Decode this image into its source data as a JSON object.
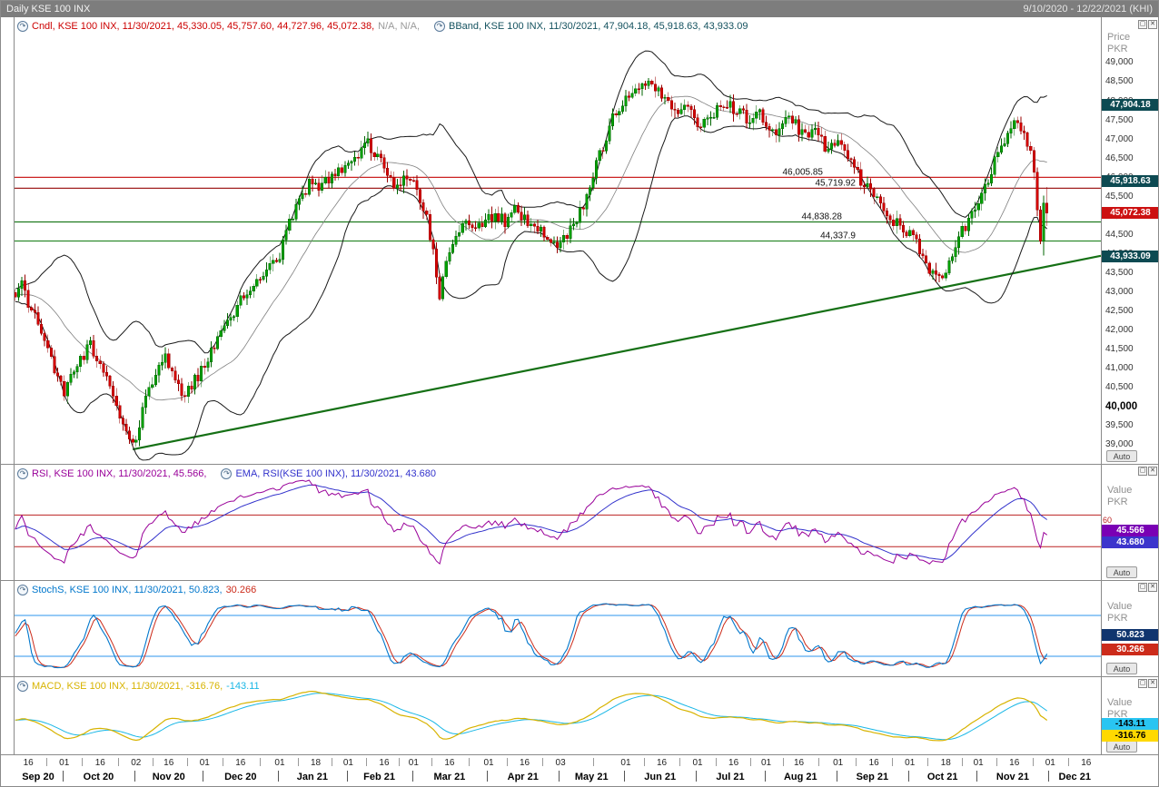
{
  "title_bar": {
    "title": "Daily KSE 100 INX",
    "range": "9/10/2020 - 12/22/2021 (KHI)"
  },
  "icons": {
    "indicator": "↷",
    "maximize": "▢",
    "close": "✕"
  },
  "colors": {
    "cndl": "#cc0000",
    "na": "#999999",
    "bband": "#14525f",
    "rsi": "#990099",
    "rsi_ema": "#3333cc",
    "stoch_k": "#0077cc",
    "stoch_d": "#cc2b1a",
    "macd": "#d7b300",
    "macd_signal": "#19b7e6",
    "up_candle": "#00a000",
    "up_stroke": "#006600",
    "down_candle": "#d40000",
    "down_stroke": "#990000",
    "band_line": "#1a1a1a",
    "band_mid": "#808080",
    "trendline": "#157015",
    "ref_blue": "#58aaf0",
    "ref_red": "#bb2222"
  },
  "panels": {
    "main": {
      "legend_cndl": "Cndl, KSE 100 INX, 11/30/2021, 45,330.05, 45,757.60, 44,727.96, 45,072.38,",
      "legend_cndl_na": "N/A, N/A,",
      "legend_bband": "BBand, KSE 100 INX, 11/30/2021, 47,904.18, 45,918.63, 43,933.09",
      "axis": {
        "label": "Price",
        "currency": "PKR",
        "auto": "Auto",
        "bold_tick": "40,000",
        "ticks": [
          "49,000",
          "48,500",
          "48,000",
          "47,500",
          "47,000",
          "46,500",
          "46,000",
          "45,500",
          "45,000",
          "44,500",
          "44,000",
          "43,500",
          "43,000",
          "42,500",
          "42,000",
          "41,500",
          "41,000",
          "40,500",
          "40,000",
          "39,500",
          "39,000"
        ]
      },
      "badges": [
        {
          "text": "47,904.18",
          "value": 47904.18,
          "bg": "#0d4a52",
          "fg": "#ffffff"
        },
        {
          "text": "45,918.63",
          "value": 45918.63,
          "bg": "#0d4a52",
          "fg": "#ffffff"
        },
        {
          "text": "45,072.38",
          "value": 45072.38,
          "bg": "#cc1111",
          "fg": "#ffffff"
        },
        {
          "text": "43,933.09",
          "value": 43933.09,
          "bg": "#0d4a52",
          "fg": "#ffffff"
        }
      ],
      "levels": [
        {
          "label": "46,005.85",
          "value": 46005.85,
          "color": "#cc2222"
        },
        {
          "label": "45,719.92",
          "value": 45719.92,
          "color": "#a02020"
        },
        {
          "label": "44,838.28",
          "value": 44838.28,
          "color": "#1f7a1f"
        },
        {
          "label": "44,337.9",
          "value": 44337.9,
          "color": "#2e8b2e"
        }
      ]
    },
    "rsi": {
      "legend_rsi": "RSI, KSE 100 INX, 11/30/2021, 45.566,",
      "legend_ema": "EMA, RSI(KSE 100 INX), 11/30/2021, 43.680",
      "level_label": "60",
      "ref_lines": [
        60,
        30
      ],
      "axis": {
        "label": "Value",
        "currency": "PKR",
        "auto": "Auto"
      },
      "badges": [
        {
          "text": "45.566",
          "value": 45.566,
          "bg": "#7a00b4",
          "fg": "#ffffff"
        },
        {
          "text": "43.680",
          "value": 43.68,
          "bg": "#3c35cc",
          "fg": "#ffffff"
        }
      ]
    },
    "stoch": {
      "legend_k": "StochS, KSE 100 INX, 11/30/2021, 50.823,",
      "legend_d": "30.266",
      "ref_lines": [
        80,
        20
      ],
      "axis": {
        "label": "Value",
        "currency": "PKR",
        "auto": "Auto"
      },
      "badges": [
        {
          "text": "50.823",
          "value": 50.823,
          "bg": "#10356e",
          "fg": "#ffffff"
        },
        {
          "text": "30.266",
          "value": 30.266,
          "bg": "#cc2b1a",
          "fg": "#ffffff"
        }
      ]
    },
    "macd": {
      "legend_macd": "MACD, KSE 100 INX, 11/30/2021, -316.76,",
      "legend_signal": "-143.11",
      "axis": {
        "label": "Value",
        "currency": "PKR",
        "auto": "Auto"
      },
      "badges": [
        {
          "text": "-143.11",
          "value": -143.11,
          "bg": "#29c5f2",
          "fg": "#000000"
        },
        {
          "text": "-316.76",
          "value": -316.76,
          "bg": "#ffd900",
          "fg": "#000000"
        }
      ]
    }
  },
  "x_axis": {
    "day_ticks": [
      [
        "16",
        4
      ],
      [
        "01",
        15
      ],
      [
        "16",
        26
      ],
      [
        "02",
        37
      ],
      [
        "16",
        47
      ],
      [
        "01",
        58
      ],
      [
        "16",
        69
      ],
      [
        "01",
        81
      ],
      [
        "18",
        92
      ],
      [
        "01",
        102
      ],
      [
        "16",
        113
      ],
      [
        "01",
        122
      ],
      [
        "16",
        133
      ],
      [
        "01",
        145
      ],
      [
        "16",
        156
      ],
      [
        "03",
        167
      ],
      [
        "01",
        187
      ],
      [
        "16",
        198
      ],
      [
        "01",
        209
      ],
      [
        "16",
        220
      ],
      [
        "01",
        230
      ],
      [
        "16",
        240
      ],
      [
        "01",
        252
      ],
      [
        "16",
        263
      ],
      [
        "01",
        274
      ],
      [
        "18",
        285
      ],
      [
        "01",
        295
      ],
      [
        "16",
        306
      ],
      [
        "01",
        317
      ],
      [
        "16",
        328
      ]
    ],
    "months": [
      [
        "Sep 20",
        0,
        15
      ],
      [
        "Oct 20",
        15,
        37
      ],
      [
        "Nov 20",
        37,
        58
      ],
      [
        "Dec 20",
        58,
        81
      ],
      [
        "Jan 21",
        81,
        102
      ],
      [
        "Feb 21",
        102,
        122
      ],
      [
        "Mar 21",
        122,
        145
      ],
      [
        "Apr 21",
        145,
        167
      ],
      [
        "May 21",
        167,
        187
      ],
      [
        "Jun 21",
        187,
        209
      ],
      [
        "Jul 21",
        209,
        230
      ],
      [
        "Aug 21",
        230,
        252
      ],
      [
        "Sep 21",
        252,
        274
      ],
      [
        "Oct 21",
        274,
        295
      ],
      [
        "Nov 21",
        295,
        317
      ],
      [
        "Dec 21",
        317,
        333
      ]
    ]
  },
  "chart_data": {
    "type": "candlestick",
    "title": "Daily KSE 100 INX",
    "instrument": "KSE 100 INX",
    "interval": "Daily",
    "date_range": "9/10/2020 - 12/22/2021",
    "exchange": "KHI",
    "last_candle": {
      "date": "11/30/2021",
      "open": 45330.05,
      "high": 45757.6,
      "low": 44727.96,
      "close": 45072.38
    },
    "bollinger_last": {
      "upper": 47904.18,
      "middle": 45918.63,
      "lower": 43933.09
    },
    "horizontal_levels": [
      46005.85,
      45719.92,
      44838.28,
      44337.9
    ],
    "trendline": {
      "from_day": 36,
      "from_price": 38880,
      "to_day": 333,
      "to_price": 43950
    },
    "rsi_last": 45.566,
    "rsi_ema_last": 43.68,
    "stoch_k_last": 50.823,
    "stoch_d_last": 30.266,
    "macd_last": -316.76,
    "macd_signal_last": -143.11,
    "ylim": [
      38500,
      50200
    ],
    "yticks": {
      "max": 49000,
      "min": 39000,
      "step": 500
    },
    "total_days": 333,
    "candle_count": 317,
    "approx_daily_close_path": [
      [
        0,
        42900
      ],
      [
        2,
        43300
      ],
      [
        4,
        42750
      ],
      [
        7,
        42100
      ],
      [
        10,
        41400
      ],
      [
        13,
        40700
      ],
      [
        15,
        40350
      ],
      [
        17,
        40750
      ],
      [
        20,
        41250
      ],
      [
        23,
        41600
      ],
      [
        26,
        41150
      ],
      [
        29,
        40450
      ],
      [
        32,
        39750
      ],
      [
        34,
        39300
      ],
      [
        36,
        38950
      ],
      [
        38,
        39500
      ],
      [
        40,
        40250
      ],
      [
        43,
        40900
      ],
      [
        46,
        41250
      ],
      [
        49,
        40650
      ],
      [
        52,
        40300
      ],
      [
        55,
        40700
      ],
      [
        58,
        41050
      ],
      [
        61,
        41600
      ],
      [
        64,
        42100
      ],
      [
        67,
        42500
      ],
      [
        70,
        42900
      ],
      [
        73,
        43200
      ],
      [
        76,
        43450
      ],
      [
        79,
        43700
      ],
      [
        81,
        44000
      ],
      [
        84,
        44800
      ],
      [
        87,
        45400
      ],
      [
        90,
        45800
      ],
      [
        93,
        45650
      ],
      [
        96,
        45950
      ],
      [
        99,
        46200
      ],
      [
        102,
        46350
      ],
      [
        105,
        46650
      ],
      [
        108,
        46900
      ],
      [
        111,
        46550
      ],
      [
        114,
        46100
      ],
      [
        117,
        45700
      ],
      [
        120,
        46000
      ],
      [
        123,
        45700
      ],
      [
        126,
        44900
      ],
      [
        128,
        44100
      ],
      [
        130,
        42900
      ],
      [
        132,
        43900
      ],
      [
        135,
        44500
      ],
      [
        138,
        44850
      ],
      [
        141,
        44650
      ],
      [
        144,
        44850
      ],
      [
        147,
        45050
      ],
      [
        150,
        44850
      ],
      [
        153,
        45150
      ],
      [
        156,
        44950
      ],
      [
        159,
        44700
      ],
      [
        162,
        44500
      ],
      [
        165,
        44350
      ],
      [
        167,
        44250
      ],
      [
        169,
        44550
      ],
      [
        172,
        44900
      ],
      [
        175,
        45400
      ],
      [
        178,
        46300
      ],
      [
        181,
        47100
      ],
      [
        183,
        47600
      ],
      [
        186,
        47900
      ],
      [
        189,
        48200
      ],
      [
        192,
        48500
      ],
      [
        194,
        48650
      ],
      [
        197,
        48300
      ],
      [
        200,
        47900
      ],
      [
        203,
        47550
      ],
      [
        206,
        47850
      ],
      [
        209,
        47250
      ],
      [
        212,
        47550
      ],
      [
        215,
        47850
      ],
      [
        218,
        47950
      ],
      [
        221,
        47750
      ],
      [
        224,
        47550
      ],
      [
        227,
        47700
      ],
      [
        230,
        47450
      ],
      [
        233,
        47250
      ],
      [
        236,
        47550
      ],
      [
        239,
        47350
      ],
      [
        242,
        47050
      ],
      [
        245,
        47250
      ],
      [
        248,
        46850
      ],
      [
        251,
        47000
      ],
      [
        254,
        46600
      ],
      [
        257,
        46200
      ],
      [
        260,
        45800
      ],
      [
        263,
        45600
      ],
      [
        266,
        45200
      ],
      [
        269,
        44850
      ],
      [
        272,
        44650
      ],
      [
        275,
        44400
      ],
      [
        278,
        43950
      ],
      [
        281,
        43450
      ],
      [
        284,
        43250
      ],
      [
        287,
        44000
      ],
      [
        290,
        44600
      ],
      [
        293,
        45000
      ],
      [
        296,
        45500
      ],
      [
        299,
        46200
      ],
      [
        302,
        46800
      ],
      [
        305,
        47300
      ],
      [
        307,
        47500
      ],
      [
        309,
        47200
      ],
      [
        311,
        46600
      ],
      [
        312,
        46100
      ],
      [
        313,
        45300
      ],
      [
        314,
        44300
      ],
      [
        315,
        45330.05
      ],
      [
        316,
        45072.38
      ]
    ]
  }
}
